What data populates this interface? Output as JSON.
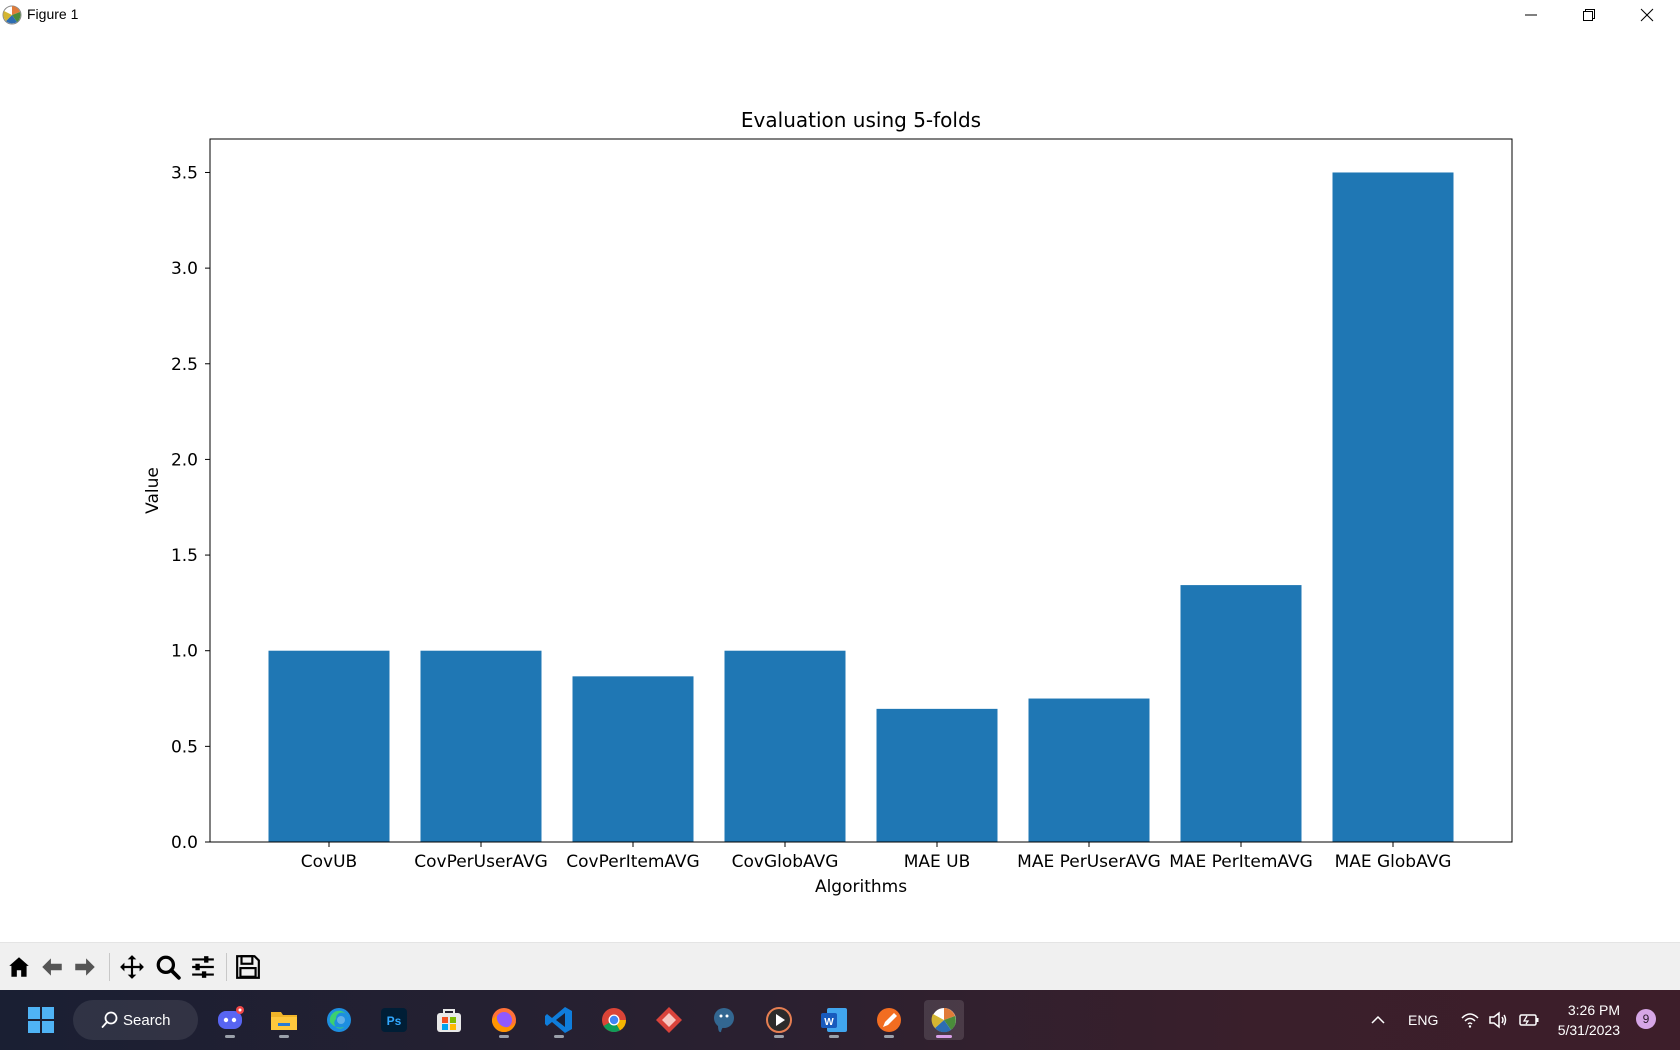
{
  "window": {
    "title": "Figure 1"
  },
  "chart_data": {
    "type": "bar",
    "title": "Evaluation using 5-folds",
    "xlabel": "Algorithms",
    "ylabel": "Value",
    "categories": [
      "CovUB",
      "CovPerUserAVG",
      "CovPerItemAVG",
      "CovGlobAVG",
      "MAE UB",
      "MAE PerUserAVG",
      "MAE PerItemAVG",
      "MAE GlobAVG"
    ],
    "values": [
      1.0,
      1.0,
      0.866,
      1.0,
      0.696,
      0.75,
      1.343,
      3.5
    ],
    "ylim": [
      0,
      3.675
    ],
    "yticks": [
      "0.0",
      "0.5",
      "1.0",
      "1.5",
      "2.0",
      "2.5",
      "3.0",
      "3.5"
    ],
    "ytick_values": [
      0,
      0.5,
      1.0,
      1.5,
      2.0,
      2.5,
      3.0,
      3.5
    ],
    "bar_color": "#1f77b4",
    "grid": false,
    "legend": "none"
  },
  "toolbar": {
    "buttons": [
      "home-icon",
      "back-icon",
      "forward-icon",
      "pan-icon",
      "zoom-icon",
      "configure-icon",
      "save-icon"
    ]
  },
  "taskbar": {
    "search_label": "Search",
    "apps": [
      "start-icon",
      "discord-icon",
      "file-explorer-icon",
      "edge-icon",
      "photoshop-icon",
      "store-icon",
      "firefox-icon",
      "vscode-icon",
      "chrome-icon",
      "app-diamond-icon",
      "postgres-icon",
      "media-player-icon",
      "word-icon",
      "pen-app-icon",
      "matplotlib-icon"
    ],
    "photoshop_label": "Ps",
    "word_label": "W",
    "language": "ENG",
    "time": "3:26 PM",
    "date": "5/31/2023",
    "notification_count": "9"
  },
  "colors": {
    "bar": "#1f77b4",
    "taskbar_bg": "#2a2030",
    "toolbar_bg": "#f0f0f0"
  }
}
